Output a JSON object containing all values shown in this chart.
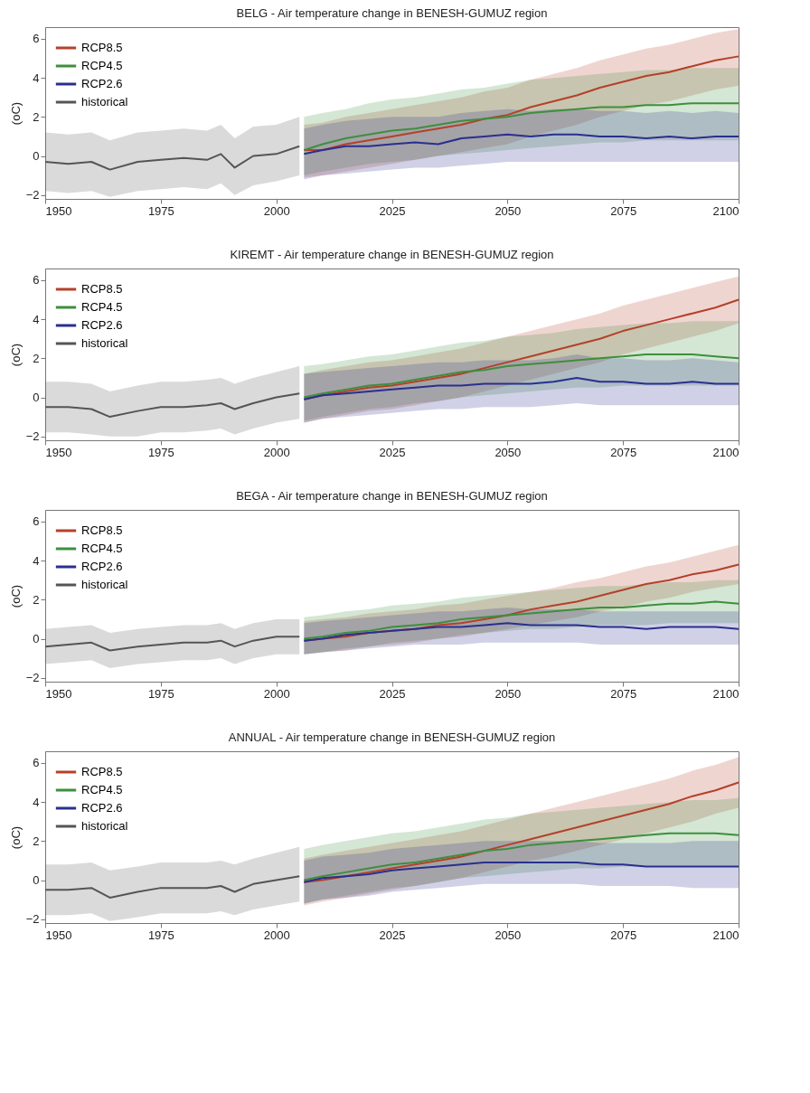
{
  "chart_data": [
    {
      "type": "line",
      "title": "BELG -  Air temperature change in  BENESH-GUMUZ region",
      "ylabel": "(oC)",
      "xlim": [
        1950,
        2100
      ],
      "xticks": [
        1950,
        1975,
        2000,
        2025,
        2050,
        2075,
        2100
      ],
      "ylim": [
        -2.2,
        6.6
      ],
      "yticks": [
        -2,
        0,
        2,
        4,
        6
      ],
      "legend": "top left",
      "series": [
        {
          "name": "RCP8.5",
          "color": "#b5402a",
          "x": [
            2006,
            2010,
            2015,
            2020,
            2025,
            2030,
            2035,
            2040,
            2045,
            2050,
            2055,
            2060,
            2065,
            2070,
            2075,
            2080,
            2085,
            2090,
            2095,
            2100
          ],
          "values": [
            0.3,
            0.3,
            0.6,
            0.8,
            1.0,
            1.2,
            1.4,
            1.6,
            1.9,
            2.1,
            2.5,
            2.8,
            3.1,
            3.5,
            3.8,
            4.1,
            4.3,
            4.6,
            4.9,
            5.1
          ],
          "lower": [
            -1.1,
            -1.0,
            -0.8,
            -0.6,
            -0.4,
            -0.2,
            0,
            0.2,
            0.4,
            0.6,
            1.0,
            1.3,
            1.6,
            2.0,
            2.3,
            2.6,
            2.8,
            3.1,
            3.4,
            3.6
          ],
          "upper": [
            1.6,
            1.7,
            2.0,
            2.2,
            2.4,
            2.6,
            2.8,
            3.0,
            3.3,
            3.5,
            3.9,
            4.2,
            4.5,
            4.9,
            5.2,
            5.5,
            5.7,
            6.0,
            6.3,
            6.5
          ]
        },
        {
          "name": "RCP4.5",
          "color": "#3d8f3d",
          "x": [
            2006,
            2010,
            2015,
            2020,
            2025,
            2030,
            2035,
            2040,
            2045,
            2050,
            2055,
            2060,
            2065,
            2070,
            2075,
            2080,
            2085,
            2090,
            2095,
            2100
          ],
          "values": [
            0.3,
            0.6,
            0.9,
            1.1,
            1.3,
            1.4,
            1.6,
            1.8,
            1.9,
            2.0,
            2.2,
            2.3,
            2.4,
            2.5,
            2.5,
            2.6,
            2.6,
            2.7,
            2.7,
            2.7
          ],
          "lower": [
            -1.0,
            -0.8,
            -0.6,
            -0.4,
            -0.3,
            -0.2,
            0,
            0.1,
            0.2,
            0.3,
            0.4,
            0.5,
            0.6,
            0.7,
            0.7,
            0.8,
            0.8,
            0.8,
            0.8,
            0.8
          ],
          "upper": [
            2.0,
            2.2,
            2.4,
            2.7,
            2.9,
            3.0,
            3.2,
            3.4,
            3.5,
            3.7,
            3.9,
            4.0,
            4.1,
            4.2,
            4.3,
            4.4,
            4.4,
            4.5,
            4.5,
            4.5
          ]
        },
        {
          "name": "RCP2.6",
          "color": "#2a2f8f",
          "x": [
            2006,
            2010,
            2015,
            2020,
            2025,
            2030,
            2035,
            2040,
            2045,
            2050,
            2055,
            2060,
            2065,
            2070,
            2075,
            2080,
            2085,
            2090,
            2095,
            2100
          ],
          "values": [
            0.1,
            0.3,
            0.5,
            0.5,
            0.6,
            0.7,
            0.6,
            0.9,
            1.0,
            1.1,
            1.0,
            1.1,
            1.1,
            1.0,
            1.0,
            0.9,
            1.0,
            0.9,
            1.0,
            1.0
          ],
          "lower": [
            -1.2,
            -1.0,
            -0.9,
            -0.8,
            -0.7,
            -0.6,
            -0.6,
            -0.5,
            -0.4,
            -0.3,
            -0.3,
            -0.3,
            -0.3,
            -0.3,
            -0.3,
            -0.3,
            -0.3,
            -0.3,
            -0.3,
            -0.3
          ],
          "upper": [
            1.4,
            1.6,
            1.8,
            1.9,
            2.0,
            2.0,
            2.0,
            2.2,
            2.3,
            2.4,
            2.3,
            2.4,
            2.4,
            2.3,
            2.3,
            2.2,
            2.3,
            2.2,
            2.3,
            2.2
          ]
        },
        {
          "name": "historical",
          "color": "#555555",
          "x": [
            1950,
            1955,
            1960,
            1964,
            1970,
            1975,
            1980,
            1985,
            1988,
            1991,
            1995,
            2000,
            2005
          ],
          "values": [
            -0.3,
            -0.4,
            -0.3,
            -0.7,
            -0.3,
            -0.2,
            -0.1,
            -0.2,
            0.1,
            -0.6,
            0,
            0.1,
            0.5
          ],
          "lower": [
            -1.8,
            -1.9,
            -1.8,
            -2.1,
            -1.8,
            -1.7,
            -1.6,
            -1.7,
            -1.4,
            -2.0,
            -1.5,
            -1.3,
            -1.0
          ],
          "upper": [
            1.2,
            1.1,
            1.2,
            0.8,
            1.2,
            1.3,
            1.4,
            1.3,
            1.6,
            0.9,
            1.5,
            1.6,
            2.0
          ]
        }
      ]
    },
    {
      "type": "line",
      "title": "KIREMT -  Air temperature change in  BENESH-GUMUZ region",
      "ylabel": "(oC)",
      "xlim": [
        1950,
        2100
      ],
      "xticks": [
        1950,
        1975,
        2000,
        2025,
        2050,
        2075,
        2100
      ],
      "ylim": [
        -2.2,
        6.6
      ],
      "yticks": [
        -2,
        0,
        2,
        4,
        6
      ],
      "legend": "top left",
      "series": [
        {
          "name": "RCP8.5",
          "color": "#b5402a",
          "x": [
            2006,
            2010,
            2015,
            2020,
            2025,
            2030,
            2035,
            2040,
            2045,
            2050,
            2055,
            2060,
            2065,
            2070,
            2075,
            2080,
            2085,
            2090,
            2095,
            2100
          ],
          "values": [
            -0.1,
            0.1,
            0.3,
            0.5,
            0.6,
            0.8,
            1.0,
            1.2,
            1.5,
            1.8,
            2.1,
            2.4,
            2.7,
            3.0,
            3.4,
            3.7,
            4.0,
            4.3,
            4.6,
            5.0
          ],
          "lower": [
            -1.3,
            -1.1,
            -0.9,
            -0.7,
            -0.6,
            -0.4,
            -0.2,
            0,
            0.3,
            0.6,
            0.9,
            1.2,
            1.5,
            1.8,
            2.2,
            2.5,
            2.8,
            3.1,
            3.4,
            3.8
          ],
          "upper": [
            1.2,
            1.4,
            1.6,
            1.8,
            1.9,
            2.1,
            2.3,
            2.5,
            2.8,
            3.1,
            3.4,
            3.7,
            4.0,
            4.3,
            4.7,
            5.0,
            5.3,
            5.6,
            5.9,
            6.2
          ]
        },
        {
          "name": "RCP4.5",
          "color": "#3d8f3d",
          "x": [
            2006,
            2010,
            2015,
            2020,
            2025,
            2030,
            2035,
            2040,
            2045,
            2050,
            2055,
            2060,
            2065,
            2070,
            2075,
            2080,
            2085,
            2090,
            2095,
            2100
          ],
          "values": [
            0,
            0.2,
            0.4,
            0.6,
            0.7,
            0.9,
            1.1,
            1.3,
            1.4,
            1.6,
            1.7,
            1.8,
            1.9,
            2.0,
            2.1,
            2.2,
            2.2,
            2.2,
            2.1,
            2.0
          ],
          "lower": [
            -1.2,
            -1.0,
            -0.8,
            -0.6,
            -0.5,
            -0.3,
            -0.2,
            0,
            0.1,
            0.2,
            0.3,
            0.4,
            0.5,
            0.5,
            0.6,
            0.6,
            0.6,
            0.6,
            0.6,
            0.6
          ],
          "upper": [
            1.6,
            1.7,
            1.9,
            2.1,
            2.2,
            2.4,
            2.6,
            2.8,
            2.9,
            3.1,
            3.2,
            3.3,
            3.5,
            3.6,
            3.7,
            3.8,
            3.8,
            3.9,
            3.9,
            3.9
          ]
        },
        {
          "name": "RCP2.6",
          "color": "#2a2f8f",
          "x": [
            2006,
            2010,
            2015,
            2020,
            2025,
            2030,
            2035,
            2040,
            2045,
            2050,
            2055,
            2060,
            2065,
            2070,
            2075,
            2080,
            2085,
            2090,
            2095,
            2100
          ],
          "values": [
            -0.1,
            0.1,
            0.2,
            0.3,
            0.4,
            0.5,
            0.6,
            0.6,
            0.7,
            0.7,
            0.7,
            0.8,
            1.0,
            0.8,
            0.8,
            0.7,
            0.7,
            0.8,
            0.7,
            0.7
          ],
          "lower": [
            -1.3,
            -1.1,
            -1.0,
            -0.9,
            -0.8,
            -0.7,
            -0.6,
            -0.6,
            -0.5,
            -0.5,
            -0.5,
            -0.4,
            -0.3,
            -0.4,
            -0.4,
            -0.4,
            -0.4,
            -0.4,
            -0.4,
            -0.4
          ],
          "upper": [
            1.2,
            1.3,
            1.4,
            1.5,
            1.6,
            1.7,
            1.8,
            1.8,
            1.9,
            1.9,
            1.9,
            2.0,
            2.2,
            2.0,
            2.0,
            1.9,
            1.9,
            2.0,
            1.9,
            1.8
          ]
        },
        {
          "name": "historical",
          "color": "#555555",
          "x": [
            1950,
            1955,
            1960,
            1964,
            1970,
            1975,
            1980,
            1985,
            1988,
            1991,
            1995,
            2000,
            2005
          ],
          "values": [
            -0.5,
            -0.5,
            -0.6,
            -1.0,
            -0.7,
            -0.5,
            -0.5,
            -0.4,
            -0.3,
            -0.6,
            -0.3,
            0,
            0.2
          ],
          "lower": [
            -1.8,
            -1.8,
            -1.9,
            -2.0,
            -2.0,
            -1.8,
            -1.8,
            -1.7,
            -1.6,
            -1.9,
            -1.6,
            -1.3,
            -1.1
          ],
          "upper": [
            0.8,
            0.8,
            0.7,
            0.3,
            0.6,
            0.8,
            0.8,
            0.9,
            1.0,
            0.7,
            1.0,
            1.3,
            1.6
          ]
        }
      ]
    },
    {
      "type": "line",
      "title": "BEGA -  Air temperature change in  BENESH-GUMUZ region",
      "ylabel": "(oC)",
      "xlim": [
        1950,
        2100
      ],
      "xticks": [
        1950,
        1975,
        2000,
        2025,
        2050,
        2075,
        2100
      ],
      "ylim": [
        -2.2,
        6.6
      ],
      "yticks": [
        -2,
        0,
        2,
        4,
        6
      ],
      "legend": "top left",
      "series": [
        {
          "name": "RCP8.5",
          "color": "#b5402a",
          "x": [
            2006,
            2010,
            2015,
            2020,
            2025,
            2030,
            2035,
            2040,
            2045,
            2050,
            2055,
            2060,
            2065,
            2070,
            2075,
            2080,
            2085,
            2090,
            2095,
            2100
          ],
          "values": [
            -0.1,
            0,
            0.1,
            0.3,
            0.4,
            0.5,
            0.7,
            0.8,
            1.0,
            1.2,
            1.5,
            1.7,
            1.9,
            2.2,
            2.5,
            2.8,
            3.0,
            3.3,
            3.5,
            3.8
          ],
          "lower": [
            -0.8,
            -0.7,
            -0.6,
            -0.4,
            -0.3,
            -0.2,
            0,
            0.1,
            0.3,
            0.5,
            0.7,
            0.9,
            1.1,
            1.4,
            1.6,
            1.9,
            2.1,
            2.4,
            2.6,
            2.8
          ],
          "upper": [
            0.9,
            1.0,
            1.1,
            1.3,
            1.4,
            1.5,
            1.7,
            1.8,
            2.0,
            2.2,
            2.4,
            2.6,
            2.9,
            3.1,
            3.4,
            3.7,
            3.9,
            4.2,
            4.5,
            4.8
          ]
        },
        {
          "name": "RCP4.5",
          "color": "#3d8f3d",
          "x": [
            2006,
            2010,
            2015,
            2020,
            2025,
            2030,
            2035,
            2040,
            2045,
            2050,
            2055,
            2060,
            2065,
            2070,
            2075,
            2080,
            2085,
            2090,
            2095,
            2100
          ],
          "values": [
            0,
            0.1,
            0.3,
            0.4,
            0.6,
            0.7,
            0.8,
            1.0,
            1.1,
            1.2,
            1.3,
            1.4,
            1.5,
            1.6,
            1.6,
            1.7,
            1.8,
            1.8,
            1.9,
            1.8
          ],
          "lower": [
            -0.8,
            -0.7,
            -0.5,
            -0.4,
            -0.2,
            -0.1,
            0,
            0.2,
            0.3,
            0.4,
            0.5,
            0.5,
            0.6,
            0.7,
            0.7,
            0.7,
            0.8,
            0.8,
            0.8,
            0.8
          ],
          "upper": [
            1.1,
            1.2,
            1.4,
            1.5,
            1.7,
            1.8,
            1.9,
            2.1,
            2.2,
            2.3,
            2.4,
            2.5,
            2.6,
            2.7,
            2.7,
            2.8,
            2.9,
            2.9,
            3.0,
            3.0
          ]
        },
        {
          "name": "RCP2.6",
          "color": "#2a2f8f",
          "x": [
            2006,
            2010,
            2015,
            2020,
            2025,
            2030,
            2035,
            2040,
            2045,
            2050,
            2055,
            2060,
            2065,
            2070,
            2075,
            2080,
            2085,
            2090,
            2095,
            2100
          ],
          "values": [
            -0.1,
            0,
            0.2,
            0.3,
            0.4,
            0.5,
            0.6,
            0.6,
            0.7,
            0.8,
            0.7,
            0.7,
            0.7,
            0.6,
            0.6,
            0.5,
            0.6,
            0.6,
            0.6,
            0.5
          ],
          "lower": [
            -0.8,
            -0.7,
            -0.6,
            -0.5,
            -0.4,
            -0.3,
            -0.3,
            -0.3,
            -0.2,
            -0.2,
            -0.2,
            -0.2,
            -0.2,
            -0.3,
            -0.3,
            -0.3,
            -0.3,
            -0.3,
            -0.3,
            -0.3
          ],
          "upper": [
            0.8,
            0.9,
            1.0,
            1.1,
            1.2,
            1.3,
            1.4,
            1.4,
            1.5,
            1.6,
            1.5,
            1.5,
            1.5,
            1.4,
            1.4,
            1.4,
            1.4,
            1.4,
            1.4,
            1.4
          ]
        },
        {
          "name": "historical",
          "color": "#555555",
          "x": [
            1950,
            1955,
            1960,
            1964,
            1970,
            1975,
            1980,
            1985,
            1988,
            1991,
            1995,
            2000,
            2005
          ],
          "values": [
            -0.4,
            -0.3,
            -0.2,
            -0.6,
            -0.4,
            -0.3,
            -0.2,
            -0.2,
            -0.1,
            -0.4,
            -0.1,
            0.1,
            0.1
          ],
          "lower": [
            -1.3,
            -1.2,
            -1.1,
            -1.5,
            -1.3,
            -1.2,
            -1.1,
            -1.1,
            -1.0,
            -1.3,
            -1.0,
            -0.8,
            -0.8
          ],
          "upper": [
            0.5,
            0.6,
            0.7,
            0.3,
            0.5,
            0.6,
            0.7,
            0.7,
            0.8,
            0.5,
            0.8,
            1.0,
            1.0
          ]
        }
      ]
    },
    {
      "type": "line",
      "title": "ANNUAL -  Air temperature change in  BENESH-GUMUZ region",
      "ylabel": "(oC)",
      "xlim": [
        1950,
        2100
      ],
      "xticks": [
        1950,
        1975,
        2000,
        2025,
        2050,
        2075,
        2100
      ],
      "ylim": [
        -2.2,
        6.6
      ],
      "yticks": [
        -2,
        0,
        2,
        4,
        6
      ],
      "legend": "top left",
      "series": [
        {
          "name": "RCP8.5",
          "color": "#b5402a",
          "x": [
            2006,
            2010,
            2015,
            2020,
            2025,
            2030,
            2035,
            2040,
            2045,
            2050,
            2055,
            2060,
            2065,
            2070,
            2075,
            2080,
            2085,
            2090,
            2095,
            2100
          ],
          "values": [
            -0.1,
            0,
            0.2,
            0.4,
            0.6,
            0.8,
            1.0,
            1.2,
            1.5,
            1.8,
            2.1,
            2.4,
            2.7,
            3.0,
            3.3,
            3.6,
            3.9,
            4.3,
            4.6,
            5.0
          ],
          "lower": [
            -1.3,
            -1.1,
            -0.9,
            -0.7,
            -0.5,
            -0.3,
            -0.1,
            0.1,
            0.4,
            0.7,
            1.0,
            1.2,
            1.5,
            1.8,
            2.1,
            2.4,
            2.7,
            3.0,
            3.4,
            3.7
          ],
          "upper": [
            1.1,
            1.3,
            1.5,
            1.7,
            1.9,
            2.1,
            2.3,
            2.5,
            2.8,
            3.1,
            3.4,
            3.7,
            4.0,
            4.3,
            4.6,
            4.9,
            5.2,
            5.6,
            5.9,
            6.3
          ]
        },
        {
          "name": "RCP4.5",
          "color": "#3d8f3d",
          "x": [
            2006,
            2010,
            2015,
            2020,
            2025,
            2030,
            2035,
            2040,
            2045,
            2050,
            2055,
            2060,
            2065,
            2070,
            2075,
            2080,
            2085,
            2090,
            2095,
            2100
          ],
          "values": [
            0,
            0.2,
            0.4,
            0.6,
            0.8,
            0.9,
            1.1,
            1.3,
            1.5,
            1.6,
            1.8,
            1.9,
            2.0,
            2.1,
            2.2,
            2.3,
            2.4,
            2.4,
            2.4,
            2.3
          ],
          "lower": [
            -1.2,
            -1.0,
            -0.8,
            -0.6,
            -0.4,
            -0.3,
            -0.1,
            0.1,
            0.2,
            0.3,
            0.4,
            0.5,
            0.6,
            0.6,
            0.7,
            0.7,
            0.7,
            0.7,
            0.7,
            0.7
          ],
          "upper": [
            1.6,
            1.8,
            2.0,
            2.2,
            2.4,
            2.5,
            2.7,
            2.9,
            3.1,
            3.2,
            3.4,
            3.5,
            3.6,
            3.7,
            3.8,
            3.9,
            4.0,
            4.1,
            4.1,
            4.2
          ]
        },
        {
          "name": "RCP2.6",
          "color": "#2a2f8f",
          "x": [
            2006,
            2010,
            2015,
            2020,
            2025,
            2030,
            2035,
            2040,
            2045,
            2050,
            2055,
            2060,
            2065,
            2070,
            2075,
            2080,
            2085,
            2090,
            2095,
            2100
          ],
          "values": [
            -0.1,
            0.1,
            0.2,
            0.3,
            0.5,
            0.6,
            0.7,
            0.8,
            0.9,
            0.9,
            0.9,
            0.9,
            0.9,
            0.8,
            0.8,
            0.7,
            0.7,
            0.7,
            0.7,
            0.7
          ],
          "lower": [
            -1.2,
            -1.0,
            -0.9,
            -0.8,
            -0.6,
            -0.5,
            -0.4,
            -0.3,
            -0.2,
            -0.2,
            -0.2,
            -0.2,
            -0.2,
            -0.3,
            -0.3,
            -0.3,
            -0.3,
            -0.4,
            -0.4,
            -0.4
          ],
          "upper": [
            1.0,
            1.2,
            1.3,
            1.4,
            1.6,
            1.7,
            1.8,
            1.9,
            2.0,
            2.0,
            2.0,
            2.0,
            2.0,
            1.9,
            1.9,
            1.9,
            1.9,
            2.0,
            2.0,
            2.0
          ]
        },
        {
          "name": "historical",
          "color": "#555555",
          "x": [
            1950,
            1955,
            1960,
            1964,
            1970,
            1975,
            1980,
            1985,
            1988,
            1991,
            1995,
            2000,
            2005
          ],
          "values": [
            -0.5,
            -0.5,
            -0.4,
            -0.9,
            -0.6,
            -0.4,
            -0.4,
            -0.4,
            -0.3,
            -0.6,
            -0.2,
            0,
            0.2
          ],
          "lower": [
            -1.8,
            -1.8,
            -1.7,
            -2.1,
            -1.9,
            -1.7,
            -1.7,
            -1.7,
            -1.6,
            -1.8,
            -1.5,
            -1.3,
            -1.1
          ],
          "upper": [
            0.8,
            0.8,
            0.9,
            0.5,
            0.7,
            0.9,
            0.9,
            0.9,
            1.0,
            0.8,
            1.1,
            1.4,
            1.7
          ]
        }
      ]
    }
  ]
}
